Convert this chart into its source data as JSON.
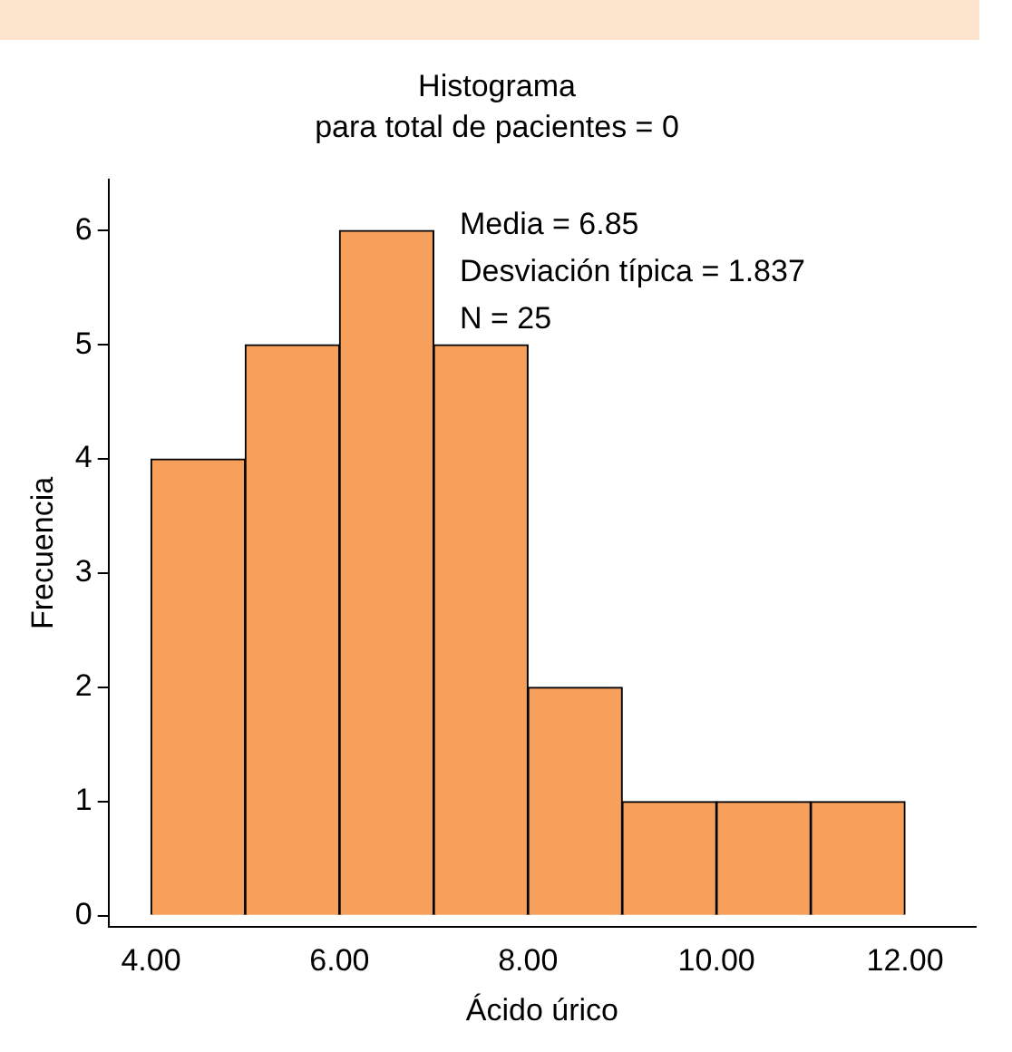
{
  "chart_data": {
    "type": "histogram",
    "title": "Histograma",
    "subtitle": "para total de pacientes = 0",
    "xlabel": "Ácido úrico",
    "ylabel": "Frecuencia",
    "bins": [
      4,
      5,
      6,
      7,
      8,
      9,
      10,
      11,
      12
    ],
    "values": [
      4,
      5,
      6,
      5,
      2,
      1,
      1,
      1
    ],
    "color": "#f7a05c",
    "xlim": [
      3.55,
      12.75
    ],
    "xticks": [
      {
        "value": 4,
        "label": "4.00"
      },
      {
        "value": 6,
        "label": "6.00"
      },
      {
        "value": 8,
        "label": "8.00"
      },
      {
        "value": 10,
        "label": "10.00"
      },
      {
        "value": 12,
        "label": "12.00"
      }
    ],
    "ylim": [
      -0.1,
      6.45
    ],
    "yticks": [
      0,
      1,
      2,
      3,
      4,
      5,
      6
    ],
    "annotations": [
      "Media = 6.85",
      "Desviación típica = 1.837",
      "N = 25"
    ],
    "grid": false,
    "legend": false
  }
}
